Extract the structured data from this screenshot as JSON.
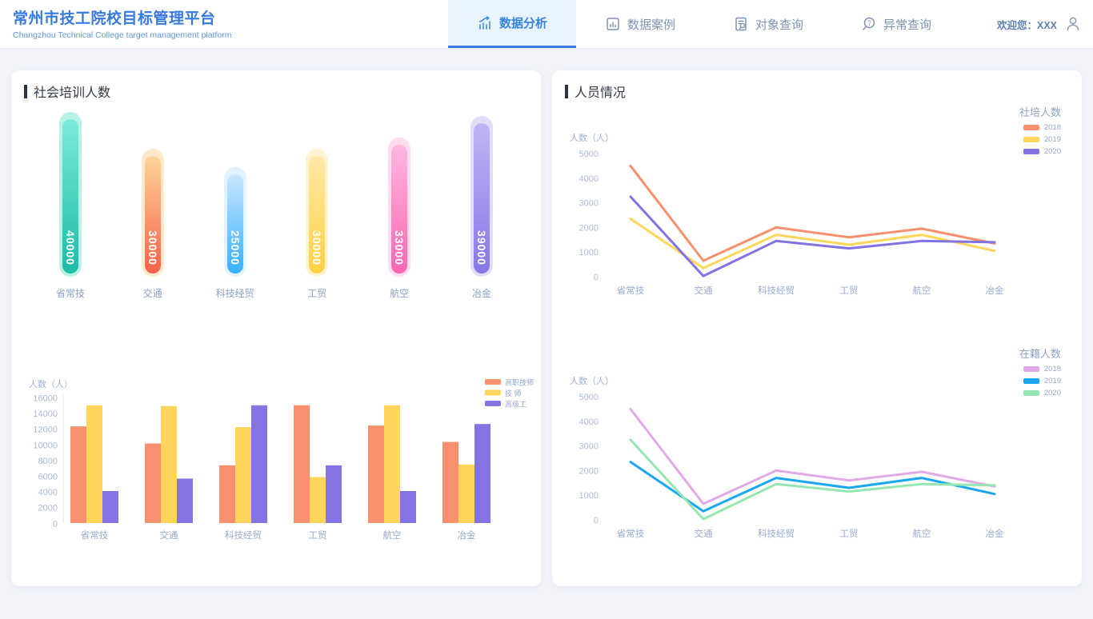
{
  "header": {
    "title": "常州市技工院校目标管理平台",
    "subtitle": "Changzhou Technical College target management platform",
    "nav": [
      {
        "name": "tab-data-analysis",
        "label": "数据分析",
        "icon": "analytics-icon",
        "active": true
      },
      {
        "name": "tab-data-cases",
        "label": "数据案例",
        "icon": "report-icon",
        "active": false
      },
      {
        "name": "tab-object-search",
        "label": "对象查询",
        "icon": "object-search-icon",
        "active": false
      },
      {
        "name": "tab-anomaly-search",
        "label": "异常查询",
        "icon": "anomaly-search-icon",
        "active": false
      }
    ],
    "welcome": "欢迎您：XXX",
    "user_icon": "user-icon"
  },
  "right_panel": {
    "title": "人员情况"
  },
  "colors": {
    "accent_blue": "#3a7be0",
    "active_tab_bg": "#e8f3fd",
    "nav_inactive": "#7e93b4",
    "page_bg": "#f1f3f9",
    "axis_text": "#aab9d8",
    "axis_line": "#dde4f0"
  },
  "chart_data": [
    {
      "id": "social-training",
      "type": "bar",
      "title": "社会培训人数",
      "categories": [
        "省常技",
        "交通",
        "科技经贸",
        "工贸",
        "航空",
        "冶金"
      ],
      "values": [
        40000,
        30000,
        25000,
        30000,
        33000,
        39000
      ],
      "ylim": [
        0,
        40000
      ],
      "bar_styles": [
        {
          "halo": "#b9f2e4",
          "top": "#7cebd9",
          "bottom": "#1ebaa8"
        },
        {
          "halo": "#ffe9c9",
          "top": "#ffd49a",
          "bottom": "#f4624c"
        },
        {
          "halo": "#e3f2ff",
          "top": "#c9e7ff",
          "bottom": "#36b0ff"
        },
        {
          "halo": "#fff3d2",
          "top": "#ffe9a8",
          "bottom": "#ffd145"
        },
        {
          "halo": "#ffdcee",
          "top": "#ffb7de",
          "bottom": "#f967b2"
        },
        {
          "halo": "#e2dcfb",
          "top": "#c0b4f6",
          "bottom": "#8678e6"
        }
      ]
    },
    {
      "id": "grade-structure",
      "type": "bar",
      "categories": [
        "省常技",
        "交通",
        "科技经贸",
        "工贸",
        "航空",
        "冶金"
      ],
      "series": [
        {
          "name": "高职技师",
          "color": "#f8906e",
          "values": [
            12400,
            10200,
            7400,
            15100,
            12500,
            10400
          ]
        },
        {
          "name": "技 师",
          "color": "#ffd55c",
          "values": [
            15100,
            15000,
            12300,
            5900,
            15100,
            7500
          ]
        },
        {
          "name": "高级工",
          "color": "#8474e3",
          "values": [
            4100,
            5700,
            15100,
            7400,
            4100,
            12700
          ]
        }
      ],
      "ylabel": "人数（人）",
      "yticks": [
        0,
        2000,
        4000,
        6000,
        8000,
        10000,
        12000,
        14000,
        16000
      ],
      "ylim": [
        0,
        16000
      ],
      "legend_position": "top-right",
      "grid": false
    },
    {
      "id": "shepei-renshu",
      "type": "line",
      "legend_title": "社培人数",
      "categories": [
        "省常技",
        "交通",
        "科技经贸",
        "工贸",
        "航空",
        "冶金"
      ],
      "series": [
        {
          "name": "2018",
          "color": "#f8906e",
          "values": [
            4500,
            650,
            2000,
            1600,
            1950,
            1350
          ]
        },
        {
          "name": "2019",
          "color": "#ffd65c",
          "values": [
            2350,
            350,
            1700,
            1300,
            1700,
            1050
          ]
        },
        {
          "name": "2020",
          "color": "#8372e3",
          "values": [
            3250,
            30,
            1450,
            1150,
            1450,
            1400
          ]
        }
      ],
      "ylabel": "人数（人）",
      "yticks": [
        0,
        1000,
        2000,
        3000,
        4000,
        5000
      ],
      "ylim": [
        0,
        5000
      ],
      "legend_position": "top-right",
      "grid": false
    },
    {
      "id": "zaiji-renshu",
      "type": "line",
      "legend_title": "在籍人数",
      "categories": [
        "省常技",
        "交通",
        "科技经贸",
        "工贸",
        "航空",
        "冶金"
      ],
      "series": [
        {
          "name": "2018",
          "color": "#e2a9e8",
          "values": [
            4500,
            650,
            2000,
            1600,
            1950,
            1350
          ]
        },
        {
          "name": "2019",
          "color": "#1ba6f2",
          "values": [
            2350,
            350,
            1700,
            1300,
            1700,
            1050
          ]
        },
        {
          "name": "2020",
          "color": "#95e6b0",
          "values": [
            3250,
            30,
            1450,
            1150,
            1450,
            1400
          ]
        }
      ],
      "ylabel": "人数（人）",
      "yticks": [
        0,
        1000,
        2000,
        3000,
        4000,
        5000
      ],
      "ylim": [
        0,
        5000
      ],
      "legend_position": "top-right",
      "grid": false
    }
  ]
}
